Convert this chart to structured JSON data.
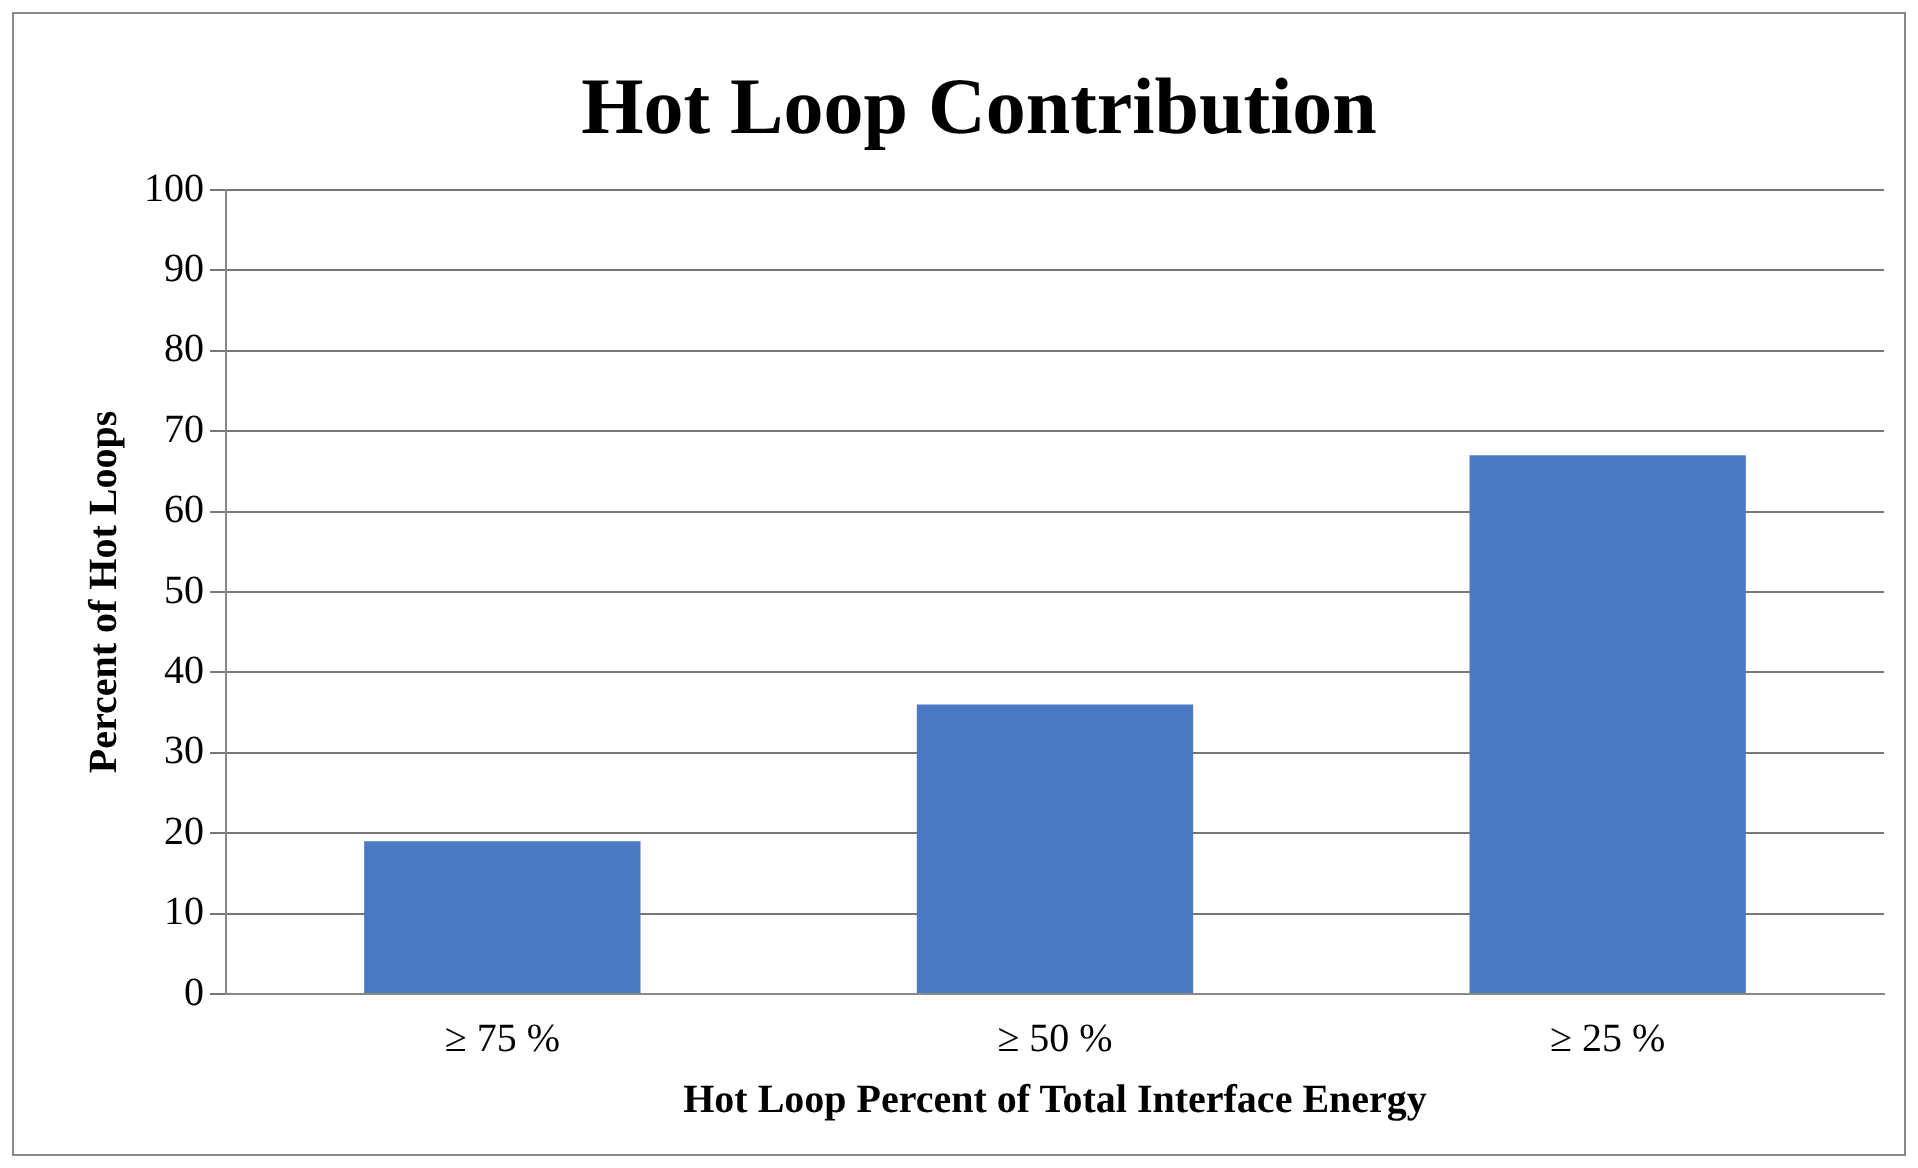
{
  "chart_data": {
    "type": "bar",
    "title": "Hot Loop Contribution",
    "xlabel": "Hot Loop Percent of Total Interface Energy",
    "ylabel": "Percent of Hot Loops",
    "categories": [
      "≥ 75 %",
      "≥ 50 %",
      "≥ 25 %"
    ],
    "values": [
      19,
      36,
      67
    ],
    "color": "#4a7ac4",
    "ylim": [
      0,
      100
    ],
    "yticks": [
      0,
      10,
      20,
      30,
      40,
      50,
      60,
      70,
      80,
      90,
      100
    ],
    "grid": "y",
    "legend": false
  }
}
